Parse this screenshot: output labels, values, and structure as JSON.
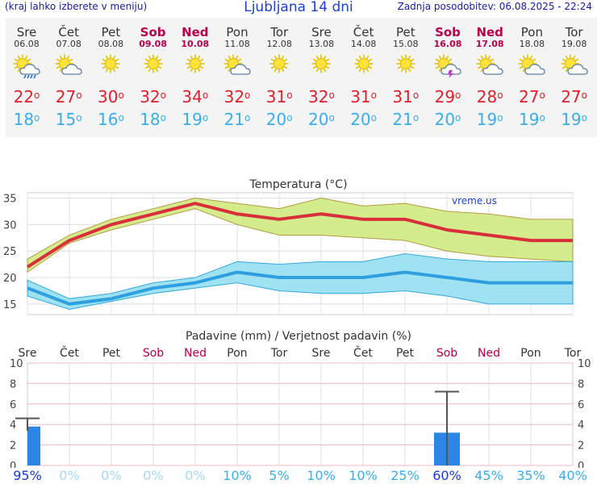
{
  "header": {
    "left_text": "(kraj lahko izberete v meniju)",
    "title": "Ljubljana 14 dni",
    "right_text": "Zadnja posodobitev: 06.08.2025 - 22:24"
  },
  "days": [
    {
      "name": "Sre",
      "date": "06.08",
      "weekend": false,
      "icon": "sun-cloud-rain-icon",
      "tmax": "22",
      "tmin": "18"
    },
    {
      "name": "Čet",
      "date": "07.08",
      "weekend": false,
      "icon": "sun-cloud-icon",
      "tmax": "27",
      "tmin": "15"
    },
    {
      "name": "Pet",
      "date": "08.08",
      "weekend": false,
      "icon": "sun-icon",
      "tmax": "30",
      "tmin": "16"
    },
    {
      "name": "Sob",
      "date": "09.08",
      "weekend": true,
      "icon": "sun-icon",
      "tmax": "32",
      "tmin": "18"
    },
    {
      "name": "Ned",
      "date": "10.08",
      "weekend": true,
      "icon": "sun-icon",
      "tmax": "34",
      "tmin": "19"
    },
    {
      "name": "Pon",
      "date": "11.08",
      "weekend": false,
      "icon": "sun-cloud-icon",
      "tmax": "32",
      "tmin": "21"
    },
    {
      "name": "Tor",
      "date": "12.08",
      "weekend": false,
      "icon": "sun-icon",
      "tmax": "31",
      "tmin": "20"
    },
    {
      "name": "Sre",
      "date": "13.08",
      "weekend": false,
      "icon": "sun-icon",
      "tmax": "32",
      "tmin": "20"
    },
    {
      "name": "Čet",
      "date": "14.08",
      "weekend": false,
      "icon": "sun-icon",
      "tmax": "31",
      "tmin": "20"
    },
    {
      "name": "Pet",
      "date": "15.08",
      "weekend": false,
      "icon": "sun-icon",
      "tmax": "31",
      "tmin": "21"
    },
    {
      "name": "Sob",
      "date": "16.08",
      "weekend": true,
      "icon": "sun-cloud-storm-icon",
      "tmax": "29",
      "tmin": "20"
    },
    {
      "name": "Ned",
      "date": "17.08",
      "weekend": true,
      "icon": "sun-cloud-icon",
      "tmax": "28",
      "tmin": "19"
    },
    {
      "name": "Pon",
      "date": "18.08",
      "weekend": false,
      "icon": "sun-cloud-icon",
      "tmax": "27",
      "tmin": "19"
    },
    {
      "name": "Tor",
      "date": "19.08",
      "weekend": false,
      "icon": "sun-cloud-icon",
      "tmax": "27",
      "tmin": "19"
    }
  ],
  "degree_symbol": "o",
  "colors": {
    "tmax": "#e0202a",
    "tmin": "#3aaee8",
    "weekend": "#b8004b",
    "precip_bar": "#2b86e6",
    "band_high": "#d4ec8c",
    "band_low": "#9fe3f3"
  },
  "chart_data": [
    {
      "type": "line",
      "title": "Temperatura (°C)",
      "watermark": "vreme.us",
      "categories": [
        "06.08",
        "07.08",
        "08.08",
        "09.08",
        "10.08",
        "11.08",
        "12.08",
        "13.08",
        "14.08",
        "15.08",
        "16.08",
        "17.08",
        "18.08",
        "19.08"
      ],
      "ylim": [
        13,
        36
      ],
      "yticks": [
        "15",
        "20",
        "25",
        "30",
        "35"
      ],
      "grid": true,
      "series": [
        {
          "role": "max",
          "values": [
            22,
            27,
            30,
            32,
            34,
            32,
            31,
            32,
            31,
            31,
            29,
            28,
            27,
            27
          ],
          "range_low": [
            21,
            26.5,
            29,
            31,
            33,
            30,
            28,
            28,
            27.5,
            27,
            25,
            24,
            23.5,
            23
          ],
          "range_high": [
            23.5,
            28,
            31,
            33,
            35,
            34,
            33,
            35,
            33.5,
            34,
            32.5,
            32,
            31,
            31
          ]
        },
        {
          "role": "min",
          "values": [
            18,
            15,
            16,
            18,
            19,
            21,
            20,
            20,
            20,
            21,
            20,
            19,
            19,
            19
          ],
          "range_low": [
            16.5,
            14,
            15.5,
            17,
            18,
            19,
            17.5,
            17,
            17,
            17.5,
            16.5,
            15,
            15,
            15
          ],
          "range_high": [
            19.5,
            16,
            17,
            19,
            20,
            23,
            22.5,
            23,
            23,
            24.5,
            23.5,
            23,
            23,
            23
          ]
        }
      ]
    },
    {
      "type": "bar",
      "title": "Padavine (mm) / Verjetnost padavin (%)",
      "categories": [
        "Sre",
        "Čet",
        "Pet",
        "Sob",
        "Ned",
        "Pon",
        "Tor",
        "Sre",
        "Čet",
        "Pet",
        "Sob",
        "Ned",
        "Pon",
        "Tor"
      ],
      "weekend": [
        false,
        false,
        false,
        true,
        true,
        false,
        false,
        false,
        false,
        false,
        true,
        true,
        false,
        false
      ],
      "ylim": [
        0,
        10
      ],
      "yticks": [
        "0",
        "2",
        "4",
        "6",
        "8",
        "10"
      ],
      "values": [
        3.8,
        0,
        0,
        0,
        0,
        0,
        0,
        0,
        0,
        0,
        3.2,
        0,
        0,
        0
      ],
      "error_high": [
        4.6,
        0,
        0,
        0,
        0,
        0,
        0,
        0,
        0,
        0,
        7.2,
        0,
        0,
        0
      ],
      "error_low": [
        3.4,
        0,
        0,
        0,
        0,
        0,
        0,
        0,
        0,
        0,
        0,
        0,
        0,
        0
      ],
      "probability": [
        "95%",
        "0%",
        "0%",
        "0%",
        "0%",
        "10%",
        "5%",
        "10%",
        "10%",
        "25%",
        "60%",
        "45%",
        "35%",
        "40%"
      ]
    }
  ]
}
